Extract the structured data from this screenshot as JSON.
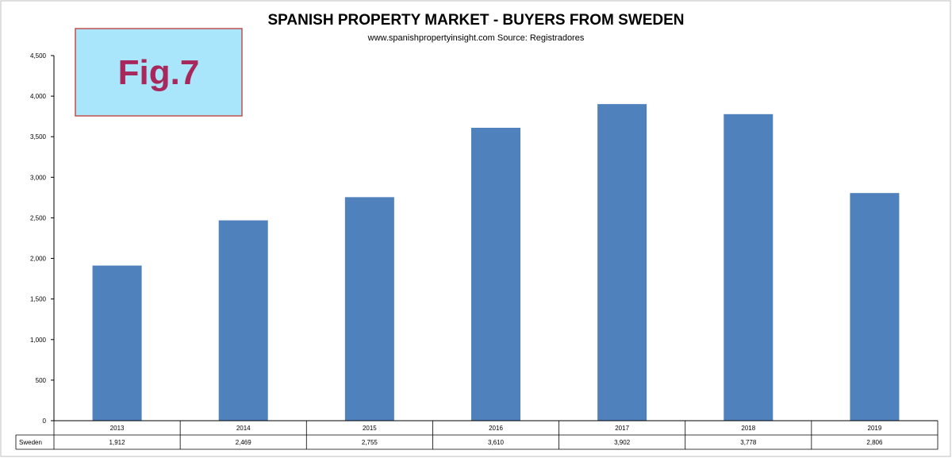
{
  "fig_label": "Fig.7",
  "chart_data": {
    "type": "bar",
    "title": "SPANISH PROPERTY MARKET - BUYERS FROM SWEDEN",
    "subtitle": "www.spanishpropertyinsight.com Source: Registradores",
    "categories": [
      "2013",
      "2014",
      "2015",
      "2016",
      "2017",
      "2018",
      "2019"
    ],
    "series": [
      {
        "name": "Sweden",
        "values": [
          1912,
          2469,
          2755,
          3610,
          3902,
          3778,
          2806
        ],
        "labels": [
          "1,912",
          "2,469",
          "2,755",
          "3,610",
          "3,902",
          "3,778",
          "2,806"
        ]
      }
    ],
    "ylim": [
      0,
      4500
    ],
    "yticks": [
      0,
      500,
      1000,
      1500,
      2000,
      2500,
      3000,
      3500,
      4000,
      4500
    ],
    "ytick_labels": [
      "0",
      "500",
      "1,000",
      "1,500",
      "2,000",
      "2,500",
      "3,000",
      "3,500",
      "4,000",
      "4,500"
    ],
    "grid": false,
    "legend": "data-table",
    "bar_color": "#4f81bd",
    "xlabel": "",
    "ylabel": ""
  },
  "colors": {
    "fig_box_fill": "#a9e5fb",
    "fig_box_border": "#c0504d",
    "fig_text": "#a8285c"
  }
}
